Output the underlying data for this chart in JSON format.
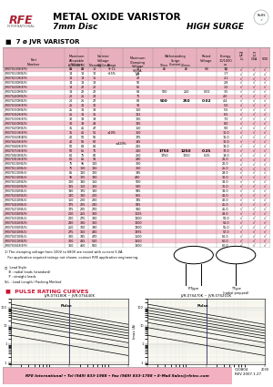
{
  "bg_color": "#ffffff",
  "header_bg": "#f2b0c0",
  "title_text": "METAL OXIDE VARISTOR",
  "subtitle_text": "7mm Disc",
  "subtitle_right": "HIGH SURGE",
  "section_title": "■  7 ø JVR VARISTOR",
  "pulse_title": "■  PULSE RATING CURVES",
  "footer_text": "RFE International • Tel (949) 833-1988 • Fax (949) 833-1788 • E-Mail Sales@rfeinc.com",
  "footer_right": "C10804\nREV 2007.1.27",
  "table_rows": [
    [
      "JVR07S100K(B/S)",
      "11",
      "14",
      "10",
      "9~11",
      "+20%",
      "36",
      "",
      "",
      "",
      "1.5",
      "√",
      "√",
      "√"
    ],
    [
      "JVR07S120K(B/S)",
      "14",
      "18",
      "12",
      "+15%",
      "",
      "41",
      "",
      "",
      "",
      "1.7",
      "√",
      "√",
      "√"
    ],
    [
      "JVR07S150K(B/S)",
      "11",
      "14",
      "15",
      "",
      "",
      "47",
      "",
      "",
      "",
      "2.1",
      "√",
      "√",
      "√"
    ],
    [
      "JVR07S180K(B/S)",
      "14",
      "18",
      "18",
      "",
      "",
      "56",
      "",
      "",
      "",
      "2.8",
      "√",
      "√",
      "√"
    ],
    [
      "JVR07S200K(B/S)",
      "18",
      "22",
      "20",
      "",
      "",
      "65",
      "",
      "",
      "",
      "3.2",
      "√",
      "√",
      "√"
    ],
    [
      "JVR07S220K(B/S)",
      "18",
      "22",
      "22",
      "",
      "",
      "68",
      "500",
      "250",
      "0.02",
      "3.5",
      "√",
      "√",
      "√"
    ],
    [
      "JVR07S240K(B/S)",
      "20",
      "25",
      "24",
      "",
      "",
      "75",
      "",
      "",
      "",
      "4.0",
      "√",
      "√",
      "√"
    ],
    [
      "JVR07S270K(B/S)",
      "20",
      "26",
      "27",
      "",
      "",
      "82",
      "",
      "",
      "",
      "4.4",
      "√",
      "√",
      "√"
    ],
    [
      "JVR07S300K(B/S)",
      "25",
      "31",
      "30",
      "",
      "",
      "91",
      "",
      "",
      "",
      "5.0",
      "√",
      "√",
      "√"
    ],
    [
      "JVR07S330K(B/S)",
      "25",
      "31",
      "33",
      "",
      "",
      "100",
      "",
      "",
      "",
      "5.5",
      "√",
      "√",
      "√"
    ],
    [
      "JVR07S360K(B/S)",
      "25",
      "31",
      "36",
      "",
      "",
      "112",
      "",
      "",
      "",
      "6.5",
      "√",
      "√",
      "√"
    ],
    [
      "JVR07S390K(B/S)",
      "30",
      "38",
      "39",
      "",
      "",
      "120",
      "",
      "",
      "",
      "7.0",
      "√",
      "√",
      "√"
    ],
    [
      "JVR07S430K(B/S)",
      "30",
      "38",
      "43",
      "",
      "",
      "135",
      "",
      "",
      "",
      "8.0",
      "√",
      "√",
      "√"
    ],
    [
      "JVR07S470K(B/S)",
      "35",
      "45",
      "47",
      "",
      "",
      "150",
      "",
      "",
      "",
      "9.0",
      "√",
      "√",
      "√"
    ],
    [
      "JVR07S510K(B/S)",
      "35",
      "45",
      "51",
      "±10%",
      "",
      "160",
      "",
      "",
      "",
      "10.0",
      "√",
      "√",
      "√"
    ],
    [
      "JVR07S560K(B/S)",
      "40",
      "50",
      "56",
      "",
      "",
      "175",
      "",
      "",
      "",
      "11.0",
      "√",
      "√",
      "√"
    ],
    [
      "JVR07S620K(B/S)",
      "40",
      "56",
      "62",
      "",
      "",
      "195",
      "",
      "",
      "",
      "12.0",
      "√",
      "√",
      "√"
    ],
    [
      "JVR07S680K(B/S)",
      "50",
      "63",
      "68",
      "",
      "",
      "215",
      "",
      "",
      "",
      "13.0",
      "√",
      "√",
      "√"
    ],
    [
      "JVR07S750K(B/S)",
      "50",
      "65",
      "75",
      "",
      "",
      "240",
      "",
      "",
      "",
      "17.0",
      "√",
      "√",
      "√"
    ],
    [
      "JVR07S820K(B/S)",
      "60",
      "75",
      "82",
      "",
      "",
      "260",
      "1750",
      "1250",
      "0.25",
      "19.0",
      "√",
      "√",
      "√"
    ],
    [
      "JVR07S910K(B/S)",
      "60",
      "85",
      "91",
      "",
      "",
      "290",
      "",
      "",
      "",
      "21.0",
      "√",
      "√",
      "√"
    ],
    [
      "JVR07S101K(B/S)",
      "75",
      "95",
      "100",
      "",
      "",
      "320",
      "",
      "",
      "",
      "22.0",
      "√",
      "√",
      "√"
    ],
    [
      "JVR07S111K(B/S)",
      "75",
      "100",
      "110",
      "",
      "",
      "360",
      "",
      "",
      "",
      "25.0",
      "√",
      "√",
      "√"
    ],
    [
      "JVR07S121K(B/S)",
      "85",
      "110",
      "120",
      "",
      "",
      "395",
      "",
      "",
      "",
      "29.0",
      "√",
      "√",
      "√"
    ],
    [
      "JVR07S131K(B/S)",
      "95",
      "125",
      "130",
      "",
      "",
      "430",
      "",
      "",
      "",
      "30.0",
      "√",
      "√",
      "√"
    ],
    [
      "JVR07S151K(B/S)",
      "100",
      "130",
      "150",
      "",
      "",
      "500",
      "",
      "",
      "",
      "33.0",
      "√",
      "√",
      "√"
    ],
    [
      "JVR07S161K(B/S)",
      "115",
      "150",
      "160",
      "",
      "",
      "530",
      "",
      "",
      "",
      "36.0",
      "√",
      "√",
      "√"
    ],
    [
      "JVR07S181K(B/S)",
      "130",
      "170",
      "180",
      "",
      "",
      "595",
      "",
      "",
      "",
      "38.0",
      "√",
      "√",
      "√"
    ],
    [
      "JVR07S201K(B/S)",
      "140",
      "180",
      "200",
      "",
      "",
      "665",
      "",
      "",
      "",
      "41.0",
      "√",
      "√",
      "√"
    ],
    [
      "JVR07S221K(B/S)",
      "150",
      "200",
      "220",
      "",
      "",
      "745",
      "",
      "",
      "",
      "42.0",
      "√",
      "√",
      "√"
    ],
    [
      "JVR07S241K(B/S)",
      "175",
      "225",
      "240",
      "",
      "",
      "815",
      "",
      "",
      "",
      "45.0",
      "√",
      "√",
      "√"
    ],
    [
      "JVR07S271K(B/S)",
      "175",
      "225",
      "270",
      "",
      "",
      "910",
      "",
      "",
      "",
      "45.0",
      "√",
      "√",
      "√"
    ],
    [
      "JVR07S301K(B/S)",
      "200",
      "255",
      "300",
      "",
      "",
      "1025",
      "",
      "",
      "",
      "48.0",
      "√",
      "√",
      "√"
    ],
    [
      "JVR07S331K(B/S)",
      "220",
      "275",
      "330",
      "",
      "",
      "1100",
      "",
      "",
      "",
      "50.0",
      "√",
      "√",
      "√"
    ],
    [
      "JVR07S361K(B/S)",
      "230",
      "300",
      "360",
      "",
      "",
      "1200",
      "",
      "",
      "",
      "53.0",
      "√",
      "√",
      "√"
    ],
    [
      "JVR07S391K(B/S)",
      "250",
      "320",
      "390",
      "",
      "",
      "1300",
      "",
      "",
      "",
      "55.0",
      "√",
      "√",
      "√"
    ],
    [
      "JVR07S431K(B/S)",
      "275",
      "350",
      "430",
      "",
      "",
      "1395",
      "",
      "",
      "",
      "57.0",
      "√",
      "√",
      "√"
    ],
    [
      "JVR07S471K(B/S)",
      "300",
      "385",
      "470",
      "",
      "",
      "1500",
      "",
      "",
      "",
      "60.0",
      "√",
      "√",
      "√"
    ],
    [
      "JVR07S511K(B/S)",
      "320",
      "415",
      "510",
      "",
      "",
      "1650",
      "",
      "",
      "",
      "60.0",
      "√",
      "√",
      "√"
    ],
    [
      "JVR07S561K(B/S)",
      "350",
      "460",
      "560",
      "",
      "",
      "1800",
      "",
      "",
      "",
      "60.0",
      "√",
      "√",
      "√"
    ]
  ],
  "notes_line1": "1) The clamping voltage from 100V to 680V are tested with current 5.0A.",
  "notes_line2": "   For application required ratings not shown, contact RFE application engineering.",
  "notes_line3": "□  Lead Style",
  "notes_line4": "    B : radial leads (standard)",
  "notes_line5": "    P : straight leads",
  "notes_line6": "S/L : Lead Length / Packing Method",
  "graph1_title": "JVR-07S180K ~ JVR-07S440K",
  "graph2_title": "JVR-07S470K ~ JVR-07S201K",
  "graph_xlabel": "Rectangular Wave (μsec.)",
  "graph_ylabel": "Imax (A)"
}
